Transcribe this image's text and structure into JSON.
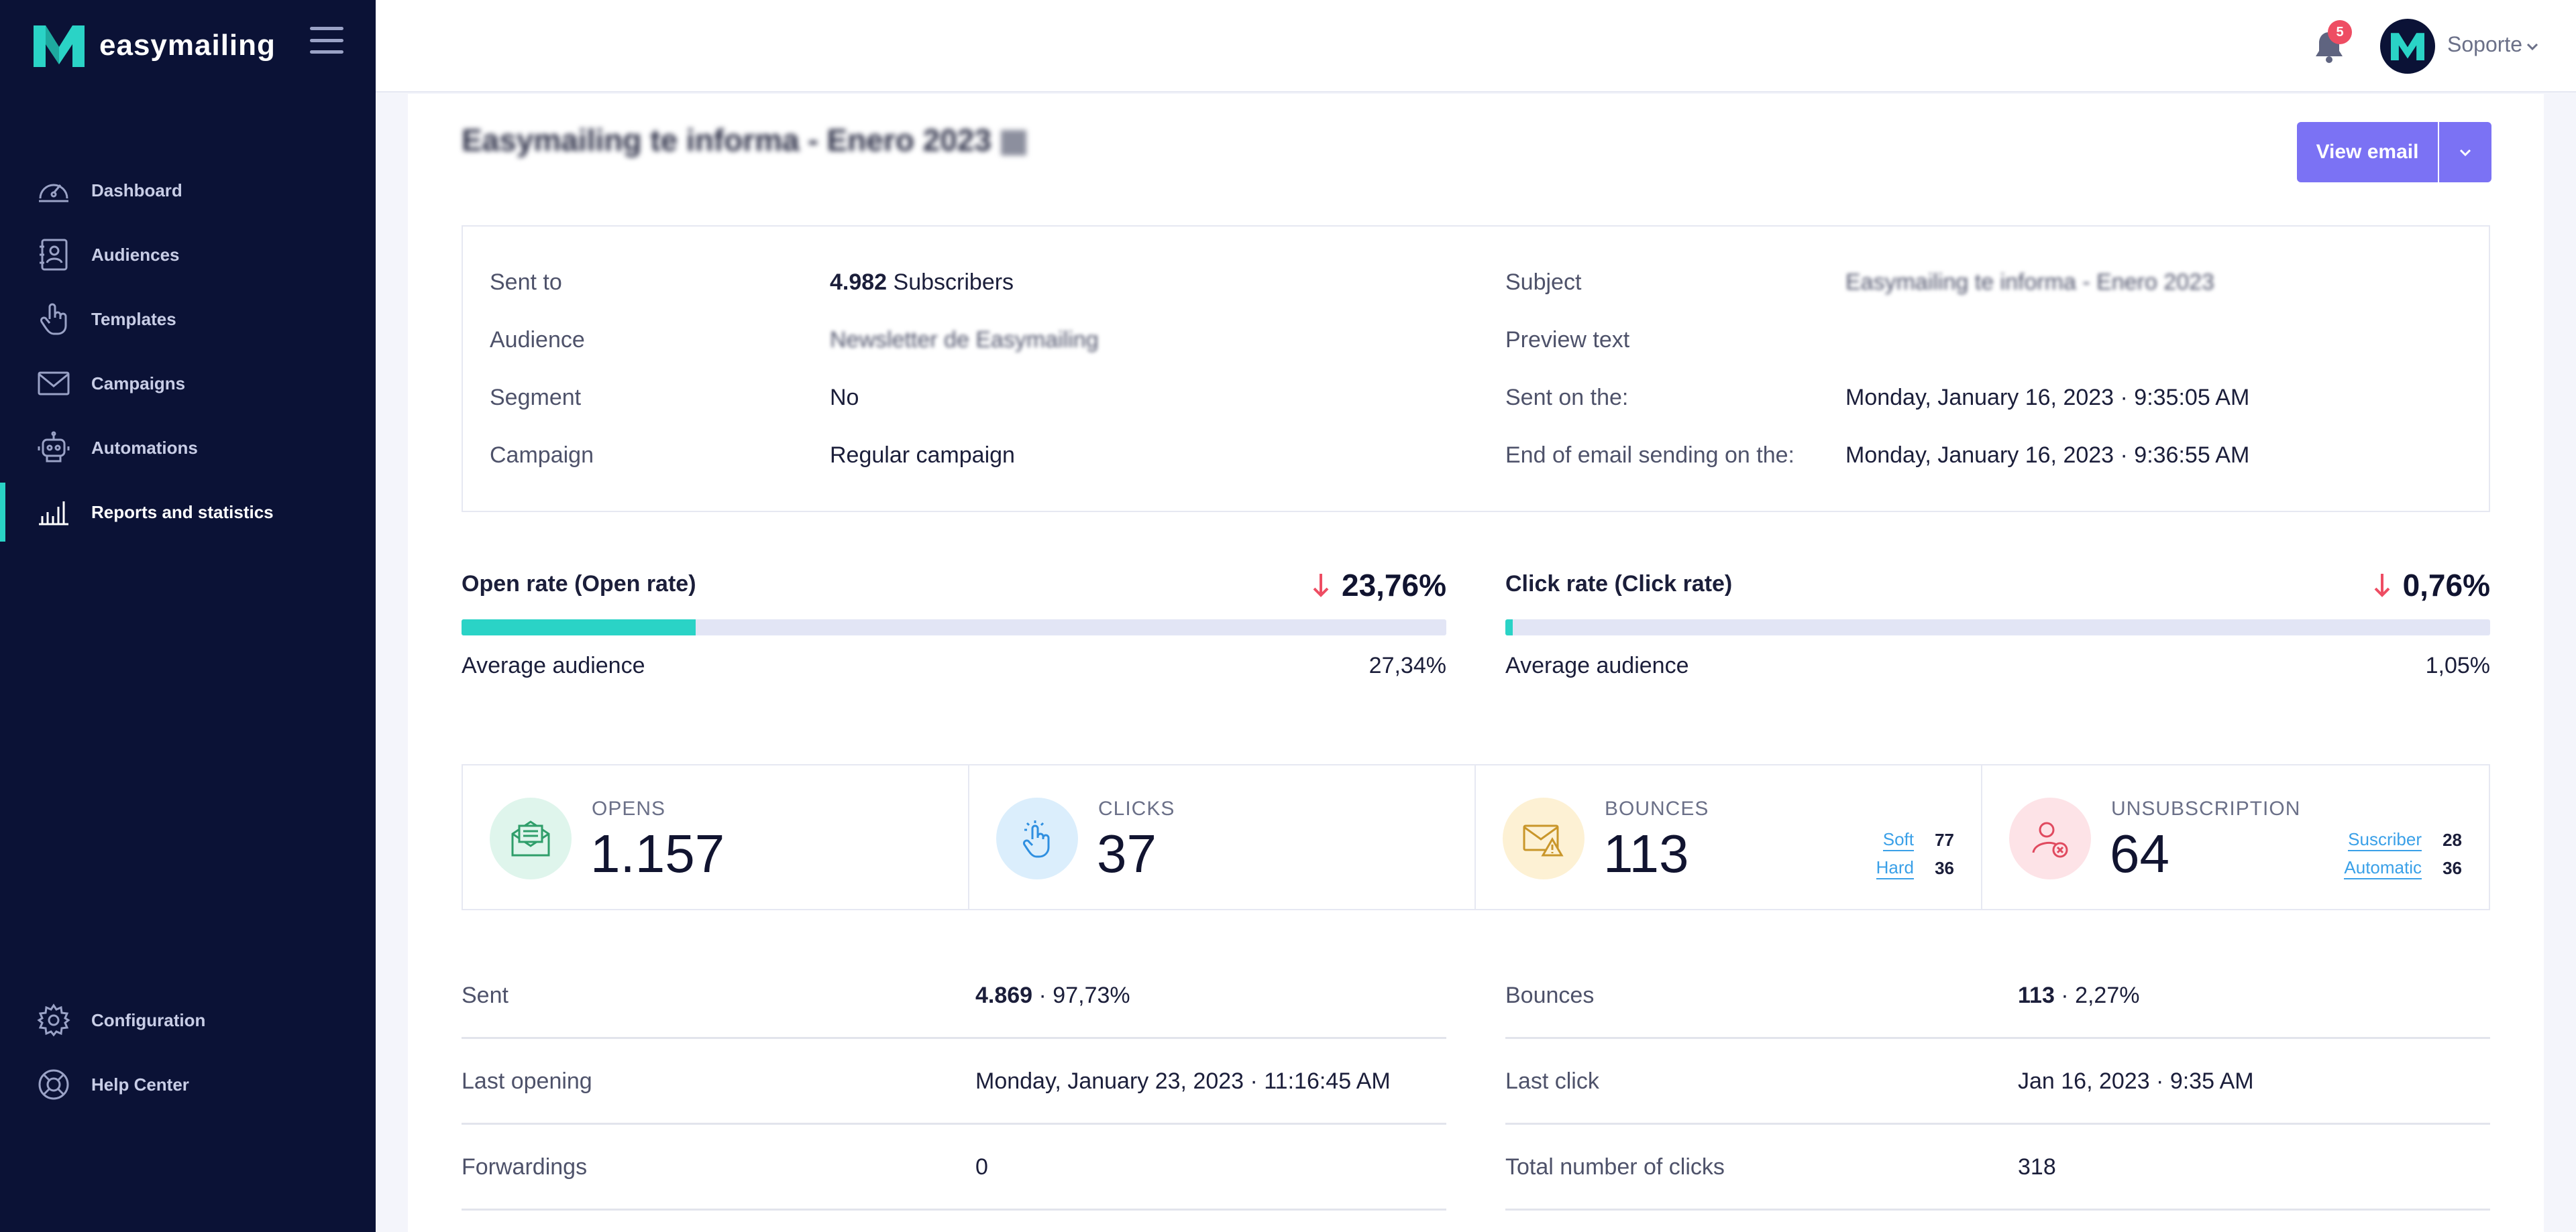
{
  "app": {
    "brand_name": "easymailing",
    "accent_color": "#2ad3c6",
    "sidebar_color": "#0b1236",
    "button_color": "#7b72f4"
  },
  "sidebar": {
    "items": [
      {
        "label": "Dashboard",
        "icon": "gauge-icon"
      },
      {
        "label": "Audiences",
        "icon": "contact-book-icon"
      },
      {
        "label": "Templates",
        "icon": "hand-pointer-icon"
      },
      {
        "label": "Campaigns",
        "icon": "envelope-icon"
      },
      {
        "label": "Automations",
        "icon": "robot-icon"
      },
      {
        "label": "Reports and statistics",
        "icon": "bar-chart-icon",
        "active": true
      }
    ],
    "bottom_items": [
      {
        "label": "Configuration",
        "icon": "gear-icon"
      },
      {
        "label": "Help Center",
        "icon": "lifebuoy-icon"
      }
    ]
  },
  "topbar": {
    "notification_count": "5",
    "user_name": "Soporte"
  },
  "report": {
    "title": "Easymailing te informa - Enero 2023",
    "view_email_label": "View email",
    "info_left": [
      {
        "label": "Sent to",
        "value_bold": "4.982",
        "value": " Subscribers"
      },
      {
        "label": "Audience",
        "value": "Newsletter de Easymailing",
        "blurred": true
      },
      {
        "label": "Segment",
        "value": "No"
      },
      {
        "label": "Campaign",
        "value": "Regular campaign"
      }
    ],
    "info_right": [
      {
        "label": "Subject",
        "value": "Easymailing te informa - Enero 2023",
        "blurred": true
      },
      {
        "label": "Preview text",
        "value": ""
      },
      {
        "label": "Sent on the:",
        "value": "Monday, January 16, 2023 · 9:35:05 AM"
      },
      {
        "label": "End of email sending on the:",
        "value": "Monday, January 16, 2023 · 9:36:55 AM"
      }
    ],
    "open_rate": {
      "title": "Open rate (Open rate)",
      "value": "23,76%",
      "fraction": 0.2376,
      "trend": "down",
      "avg_label": "Average audience",
      "avg_value": "27,34%"
    },
    "click_rate": {
      "title": "Click rate (Click rate)",
      "value": "0,76%",
      "fraction": 0.0076,
      "trend": "down",
      "avg_label": "Average audience",
      "avg_value": "1,05%"
    },
    "stats": [
      {
        "label": "OPENS",
        "value": "1.157",
        "icon": "envelope-open-icon",
        "color": "#dff5ec"
      },
      {
        "label": "CLICKS",
        "value": "37",
        "icon": "hand-click-icon",
        "color": "#dbeefc"
      },
      {
        "label": "BOUNCES",
        "value": "113",
        "icon": "envelope-warning-icon",
        "color": "#fdf1d4",
        "sub": [
          {
            "k": "Soft",
            "v": "77"
          },
          {
            "k": "Hard",
            "v": "36"
          }
        ]
      },
      {
        "label": "UNSUBSCRIPTION",
        "value": "64",
        "icon": "user-remove-icon",
        "color": "#fde3e7",
        "sub": [
          {
            "k": "Suscriber",
            "v": "28"
          },
          {
            "k": "Automatic",
            "v": "36"
          }
        ]
      }
    ],
    "details_left": [
      {
        "label": "Sent",
        "value_bold": "4.869",
        "value": " · 97,73%"
      },
      {
        "label": "Last opening",
        "value": "Monday, January 23, 2023 · 11:16:45 AM"
      },
      {
        "label": "Forwardings",
        "value": "0"
      }
    ],
    "details_right": [
      {
        "label": "Bounces",
        "value_bold": "113",
        "value": " · 2,27%"
      },
      {
        "label": "Last click",
        "value": "Jan 16, 2023 · 9:35 AM"
      },
      {
        "label": "Total number of clicks",
        "value": "318"
      }
    ]
  }
}
